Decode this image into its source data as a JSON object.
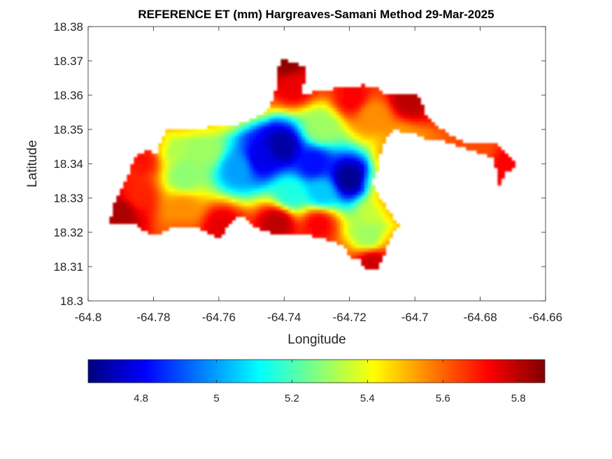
{
  "chart_data": {
    "type": "heatmap",
    "title": "REFERENCE ET (mm) Hargreaves-Samani Method  29-Mar-2025",
    "xlabel": "Longitude",
    "ylabel": "Latitude",
    "xlim": [
      -64.8,
      -64.66
    ],
    "ylim": [
      18.3,
      18.38
    ],
    "xticks": [
      -64.8,
      -64.78,
      -64.76,
      -64.74,
      -64.72,
      -64.7,
      -64.68,
      -64.66
    ],
    "xtick_labels": [
      "-64.8",
      "-64.78",
      "-64.76",
      "-64.74",
      "-64.72",
      "-64.7",
      "-64.68",
      "-64.66"
    ],
    "yticks": [
      18.3,
      18.31,
      18.32,
      18.33,
      18.34,
      18.35,
      18.36,
      18.37,
      18.38
    ],
    "ytick_labels": [
      "18.3",
      "18.31",
      "18.32",
      "18.33",
      "18.34",
      "18.35",
      "18.36",
      "18.37",
      "18.38"
    ],
    "colormap": "jet",
    "clim": [
      4.66,
      5.87
    ],
    "colorbar_ticks": [
      4.8,
      5.0,
      5.2,
      5.4,
      5.6,
      5.8
    ],
    "colorbar_labels": [
      "4.8",
      "5",
      "5.2",
      "5.4",
      "5.6",
      "5.8"
    ],
    "colorbar_location": "southoutside",
    "grid": false,
    "region_outline": [
      [
        -64.7935,
        18.3225
      ],
      [
        -64.7915,
        18.33
      ],
      [
        -64.7885,
        18.335
      ],
      [
        -64.7855,
        18.342
      ],
      [
        -64.782,
        18.344
      ],
      [
        -64.779,
        18.343
      ],
      [
        -64.7765,
        18.3495
      ],
      [
        -64.773,
        18.35
      ],
      [
        -64.765,
        18.3505
      ],
      [
        -64.756,
        18.351
      ],
      [
        -64.7515,
        18.3525
      ],
      [
        -64.7465,
        18.3545
      ],
      [
        -64.744,
        18.357
      ],
      [
        -64.7425,
        18.362
      ],
      [
        -64.7425,
        18.3665
      ],
      [
        -64.741,
        18.3705
      ],
      [
        -64.737,
        18.3695
      ],
      [
        -64.7335,
        18.368
      ],
      [
        -64.7345,
        18.3605
      ],
      [
        -64.73,
        18.361
      ],
      [
        -64.7235,
        18.362
      ],
      [
        -64.7185,
        18.3625
      ],
      [
        -64.716,
        18.363
      ],
      [
        -64.7115,
        18.362
      ],
      [
        -64.7085,
        18.36
      ],
      [
        -64.704,
        18.36
      ],
      [
        -64.6995,
        18.3598
      ],
      [
        -64.698,
        18.358
      ],
      [
        -64.6965,
        18.354
      ],
      [
        -64.694,
        18.3515
      ],
      [
        -64.692,
        18.35
      ],
      [
        -64.6885,
        18.348
      ],
      [
        -64.685,
        18.3465
      ],
      [
        -64.68,
        18.346
      ],
      [
        -64.6755,
        18.346
      ],
      [
        -64.6725,
        18.344
      ],
      [
        -64.6705,
        18.3415
      ],
      [
        -64.669,
        18.341
      ],
      [
        -64.67,
        18.339
      ],
      [
        -64.6725,
        18.337
      ],
      [
        -64.674,
        18.333
      ],
      [
        -64.675,
        18.338
      ],
      [
        -64.676,
        18.342
      ],
      [
        -64.68,
        18.343
      ],
      [
        -64.686,
        18.345
      ],
      [
        -64.692,
        18.347
      ],
      [
        -64.6975,
        18.3475
      ],
      [
        -64.7005,
        18.349
      ],
      [
        -64.704,
        18.3495
      ],
      [
        -64.706,
        18.35
      ],
      [
        -64.7085,
        18.3485
      ],
      [
        -64.711,
        18.3415
      ],
      [
        -64.7115,
        18.3385
      ],
      [
        -64.713,
        18.3345
      ],
      [
        -64.7105,
        18.33
      ],
      [
        -64.7075,
        18.3255
      ],
      [
        -64.705,
        18.322
      ],
      [
        -64.708,
        18.3175
      ],
      [
        -64.709,
        18.314
      ],
      [
        -64.711,
        18.31
      ],
      [
        -64.7145,
        18.3085
      ],
      [
        -64.717,
        18.312
      ],
      [
        -64.7195,
        18.312
      ],
      [
        -64.7215,
        18.316
      ],
      [
        -64.727,
        18.318
      ],
      [
        -64.734,
        18.3195
      ],
      [
        -64.739,
        18.319
      ],
      [
        -64.744,
        18.32
      ],
      [
        -64.749,
        18.3215
      ],
      [
        -64.7525,
        18.3245
      ],
      [
        -64.756,
        18.324
      ],
      [
        -64.7595,
        18.318
      ],
      [
        -64.762,
        18.319
      ],
      [
        -64.7655,
        18.321
      ],
      [
        -64.7705,
        18.3215
      ],
      [
        -64.7755,
        18.321
      ],
      [
        -64.78,
        18.319
      ],
      [
        -64.7825,
        18.3205
      ],
      [
        -64.786,
        18.3225
      ],
      [
        -64.79,
        18.323
      ]
    ],
    "value_centers": [
      {
        "lon": -64.7405,
        "lat": 18.345,
        "value": 4.7
      },
      {
        "lon": -64.7205,
        "lat": 18.3355,
        "value": 4.68
      },
      {
        "lon": -64.747,
        "lat": 18.3415,
        "value": 4.78
      },
      {
        "lon": -64.731,
        "lat": 18.34,
        "value": 4.82
      },
      {
        "lon": -64.7545,
        "lat": 18.3385,
        "value": 5.0
      },
      {
        "lon": -64.7285,
        "lat": 18.3315,
        "value": 5.05
      },
      {
        "lon": -64.738,
        "lat": 18.331,
        "value": 5.15
      },
      {
        "lon": -64.764,
        "lat": 18.344,
        "value": 5.3
      },
      {
        "lon": -64.7705,
        "lat": 18.3365,
        "value": 5.28
      },
      {
        "lon": -64.776,
        "lat": 18.3455,
        "value": 5.32
      },
      {
        "lon": -64.714,
        "lat": 18.319,
        "value": 5.3
      },
      {
        "lon": -64.712,
        "lat": 18.326,
        "value": 5.35
      },
      {
        "lon": -64.7285,
        "lat": 18.3505,
        "value": 5.3
      },
      {
        "lon": -64.7055,
        "lat": 18.345,
        "value": 5.42
      },
      {
        "lon": -64.785,
        "lat": 18.3305,
        "value": 5.68
      },
      {
        "lon": -64.7895,
        "lat": 18.326,
        "value": 5.82
      },
      {
        "lon": -64.783,
        "lat": 18.3415,
        "value": 5.7
      },
      {
        "lon": -64.742,
        "lat": 18.323,
        "value": 5.8
      },
      {
        "lon": -64.759,
        "lat": 18.3215,
        "value": 5.75
      },
      {
        "lon": -64.7295,
        "lat": 18.3225,
        "value": 5.72
      },
      {
        "lon": -64.713,
        "lat": 18.311,
        "value": 5.78
      },
      {
        "lon": -64.737,
        "lat": 18.363,
        "value": 5.74
      },
      {
        "lon": -64.739,
        "lat": 18.3695,
        "value": 5.85
      },
      {
        "lon": -64.719,
        "lat": 18.359,
        "value": 5.72
      },
      {
        "lon": -64.702,
        "lat": 18.359,
        "value": 5.8
      },
      {
        "lon": -64.671,
        "lat": 18.34,
        "value": 5.72
      },
      {
        "lon": -64.6805,
        "lat": 18.3455,
        "value": 5.62
      },
      {
        "lon": -64.771,
        "lat": 18.3265,
        "value": 5.55
      },
      {
        "lon": -64.713,
        "lat": 18.354,
        "value": 5.55
      }
    ]
  }
}
